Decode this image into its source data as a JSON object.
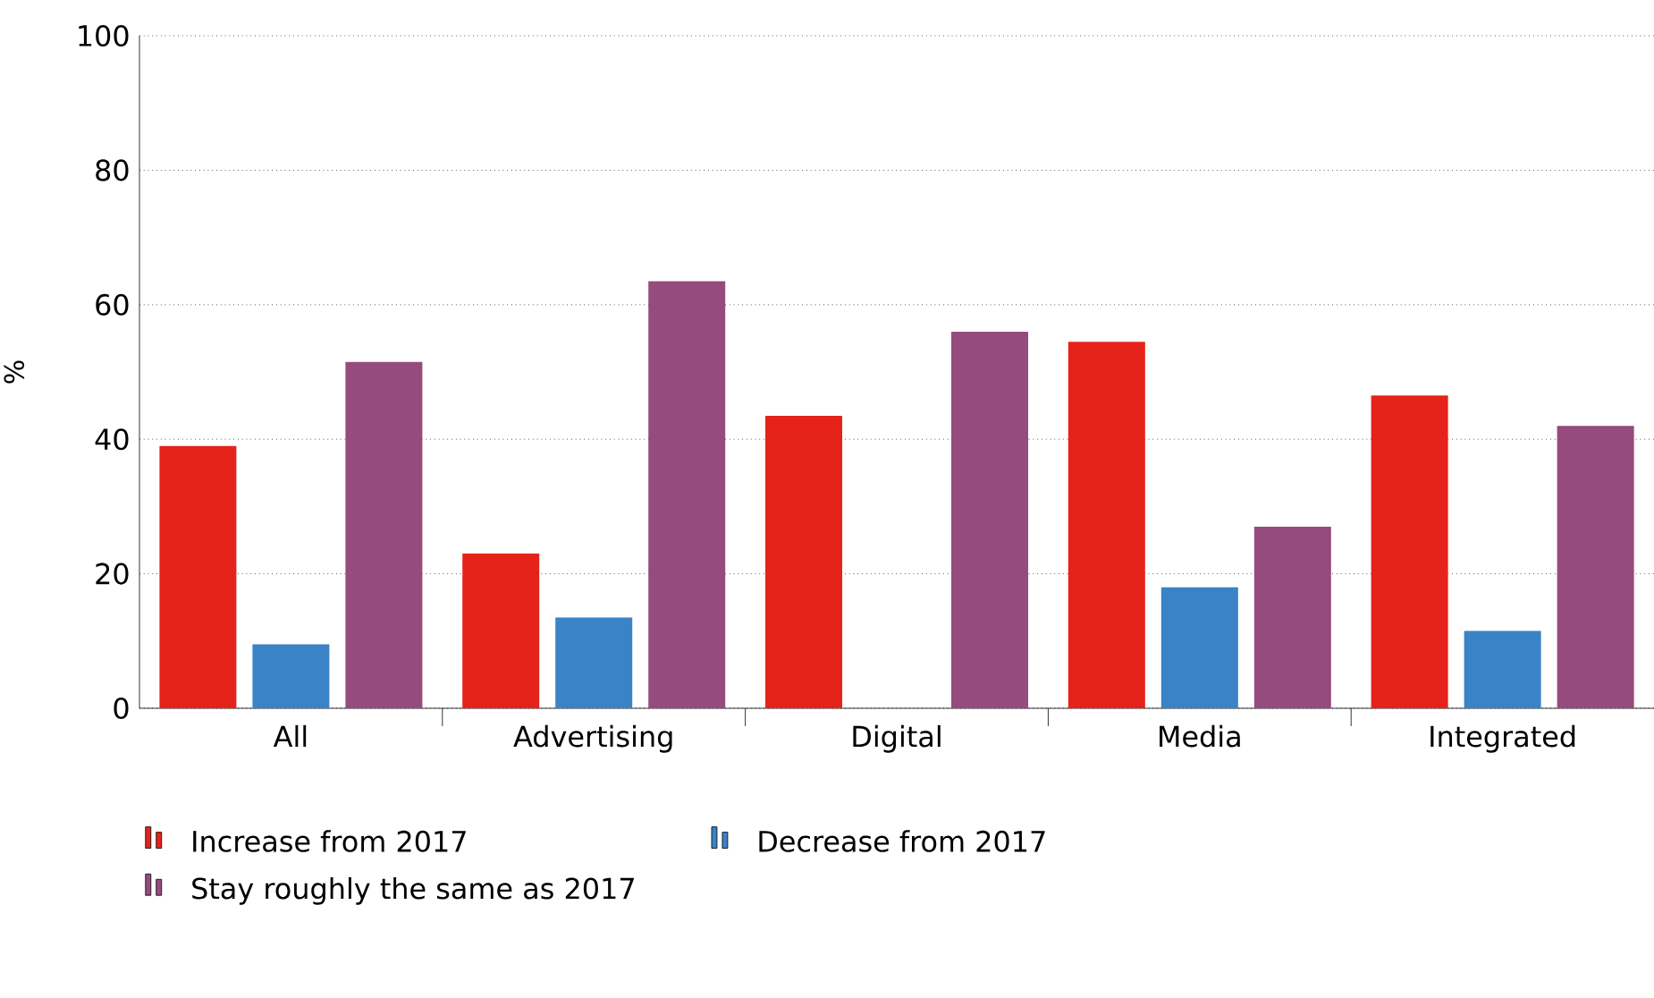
{
  "chart_data": {
    "type": "bar",
    "ylabel": "%",
    "categories": [
      "All",
      "Advertising",
      "Digital",
      "Media",
      "Integrated"
    ],
    "series": [
      {
        "name": "Increase from 2017",
        "color": "#e5231b",
        "values": [
          39,
          23,
          43.5,
          54.5,
          46.5
        ]
      },
      {
        "name": "Decrease from 2017",
        "color": "#3a83c6",
        "values": [
          9.5,
          13.5,
          0,
          18,
          11.5
        ]
      },
      {
        "name": "Stay roughly the same as 2017",
        "color": "#954b7e",
        "values": [
          51.5,
          63.5,
          56,
          27,
          42
        ]
      }
    ],
    "ylim": [
      0,
      100
    ],
    "yticks": [
      0,
      20,
      40,
      60,
      80,
      100
    ],
    "grid": "y",
    "legend": "bottom"
  }
}
